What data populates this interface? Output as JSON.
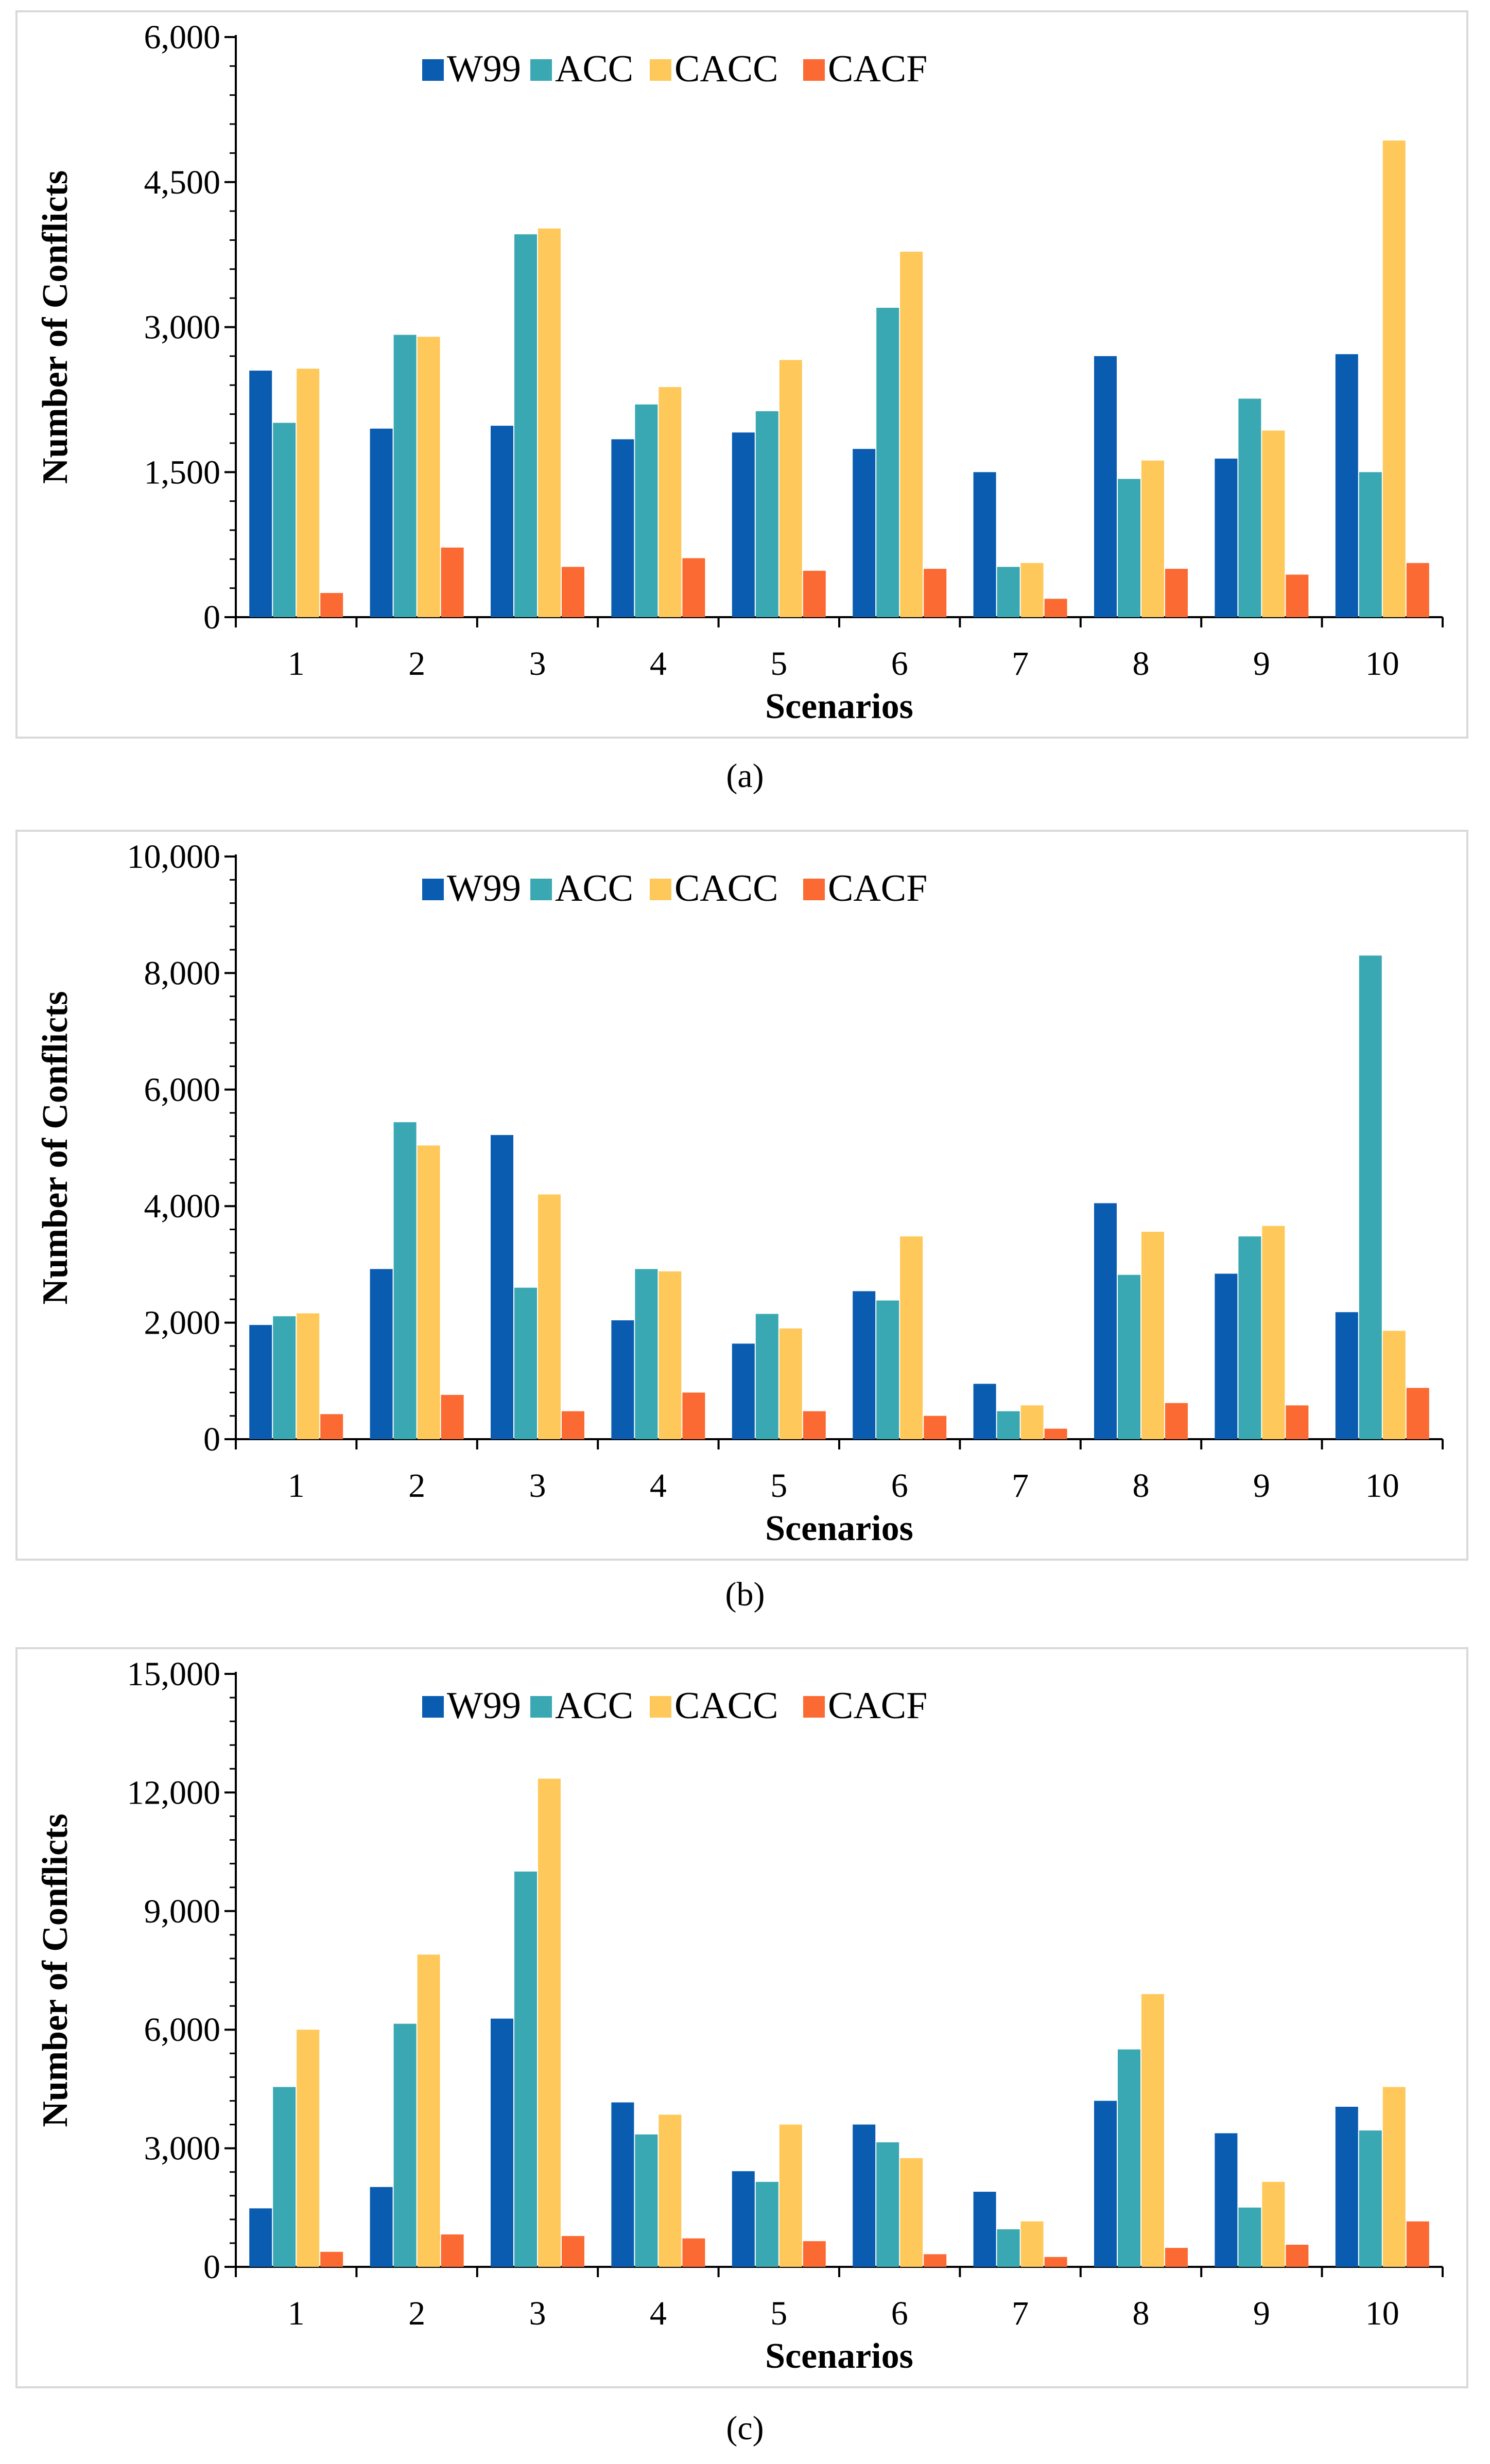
{
  "figure": {
    "captions": [
      "(a)",
      "(b)",
      "(c)"
    ]
  },
  "colors": {
    "W99": "#0a5cb0",
    "ACC": "#3aa8b2",
    "CACC": "#ffc85a",
    "CACF": "#fb6a32"
  },
  "chart_data": [
    {
      "id": "a",
      "type": "bar",
      "title": "",
      "xlabel": "Scenarios",
      "ylabel": "Number of Conflicts",
      "ylim": [
        0,
        6000
      ],
      "yticks": [
        0,
        1500,
        3000,
        4500,
        6000
      ],
      "ytick_labels": [
        "0",
        "1,500",
        "3,000",
        "4,500",
        "6,000"
      ],
      "legend_position": "top",
      "categories": [
        "1",
        "2",
        "3",
        "4",
        "5",
        "6",
        "7",
        "8",
        "9",
        "10"
      ],
      "series": [
        {
          "name": "W99",
          "values": [
            2550,
            1950,
            1980,
            1840,
            1910,
            1740,
            1500,
            2700,
            1640,
            2720
          ]
        },
        {
          "name": "ACC",
          "values": [
            2010,
            2920,
            3960,
            2200,
            2130,
            3200,
            520,
            1430,
            2260,
            1500
          ]
        },
        {
          "name": "CACC",
          "values": [
            2570,
            2900,
            4020,
            2380,
            2660,
            3780,
            560,
            1620,
            1930,
            4930
          ]
        },
        {
          "name": "CACF",
          "values": [
            250,
            720,
            520,
            610,
            480,
            500,
            190,
            500,
            440,
            560
          ]
        }
      ]
    },
    {
      "id": "b",
      "type": "bar",
      "title": "",
      "xlabel": "Scenarios",
      "ylabel": "Number of Conflicts",
      "ylim": [
        0,
        10000
      ],
      "yticks": [
        0,
        2000,
        4000,
        6000,
        8000,
        10000
      ],
      "ytick_labels": [
        "0",
        "2,000",
        "4,000",
        "6,000",
        "8,000",
        "10,000"
      ],
      "legend_position": "top",
      "categories": [
        "1",
        "2",
        "3",
        "4",
        "5",
        "6",
        "7",
        "8",
        "9",
        "10"
      ],
      "series": [
        {
          "name": "W99",
          "values": [
            1960,
            2920,
            5220,
            2040,
            1640,
            2540,
            950,
            4050,
            2840,
            2180
          ]
        },
        {
          "name": "ACC",
          "values": [
            2110,
            5440,
            2600,
            2920,
            2150,
            2380,
            480,
            2820,
            3480,
            8300
          ]
        },
        {
          "name": "CACC",
          "values": [
            2160,
            5040,
            4200,
            2880,
            1900,
            3480,
            580,
            3560,
            3660,
            1860
          ]
        },
        {
          "name": "CACF",
          "values": [
            430,
            760,
            480,
            800,
            480,
            400,
            180,
            620,
            580,
            880
          ]
        }
      ]
    },
    {
      "id": "c",
      "type": "bar",
      "title": "",
      "xlabel": "Scenarios",
      "ylabel": "Number of Conflicts",
      "ylim": [
        0,
        15000
      ],
      "yticks": [
        0,
        3000,
        6000,
        9000,
        12000,
        15000
      ],
      "ytick_labels": [
        "0",
        "3,000",
        "6,000",
        "9,000",
        "12,000",
        "15,000"
      ],
      "legend_position": "top",
      "categories": [
        "1",
        "2",
        "3",
        "4",
        "5",
        "6",
        "7",
        "8",
        "9",
        "10"
      ],
      "series": [
        {
          "name": "W99",
          "values": [
            1480,
            2020,
            6280,
            4160,
            2420,
            3600,
            1900,
            4200,
            3380,
            4050
          ]
        },
        {
          "name": "ACC",
          "values": [
            4550,
            6150,
            10000,
            3350,
            2150,
            3150,
            950,
            5500,
            1500,
            3450
          ]
        },
        {
          "name": "CACC",
          "values": [
            6000,
            7900,
            12350,
            3850,
            3600,
            2750,
            1150,
            6900,
            2150,
            4550
          ]
        },
        {
          "name": "CACF",
          "values": [
            380,
            820,
            780,
            720,
            650,
            320,
            250,
            480,
            560,
            1150
          ]
        }
      ]
    }
  ]
}
